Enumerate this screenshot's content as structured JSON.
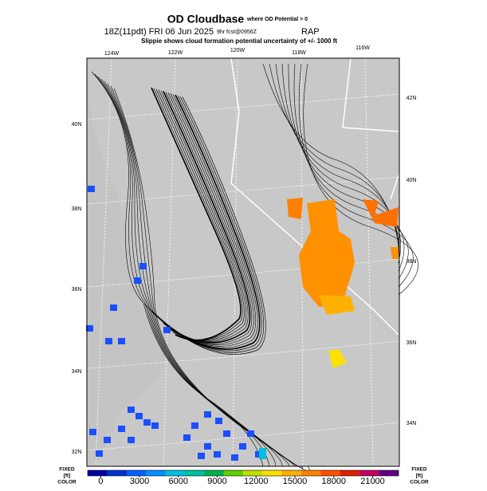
{
  "header": {
    "title": "OD Cloudbase",
    "title_note": "where OD Potential > 0",
    "run": "18Z(11pdt) FRI 06 Jun 2025",
    "forecast": "9hr fcst@0956Z",
    "model": "RAP",
    "subtitle": "Slippie shows cloud formation potential uncertainty of +/- 1000 ft"
  },
  "map": {
    "longitude_labels": [
      "124W",
      "122W",
      "120W",
      "118W",
      "116W"
    ],
    "latitude_labels_left": [
      "40N",
      "38N",
      "36N",
      "34N",
      "32N"
    ],
    "latitude_labels_right": [
      "42N",
      "40N",
      "38N",
      "36N",
      "34N"
    ]
  },
  "colorbar": {
    "range": [
      -1000,
      23000
    ],
    "ticks": [
      0,
      3000,
      6000,
      9000,
      12000,
      15000,
      18000,
      21000
    ],
    "colors": [
      "#0000a0",
      "#0030d0",
      "#0060ff",
      "#0090ff",
      "#00c0e0",
      "#00c0a0",
      "#00b050",
      "#60d000",
      "#c0e000",
      "#ffe000",
      "#ffb000",
      "#ff8000",
      "#ff5000",
      "#e02000",
      "#c00060",
      "#600080"
    ],
    "side_label": [
      "FIXED",
      "[ft]",
      "COLOR"
    ]
  }
}
